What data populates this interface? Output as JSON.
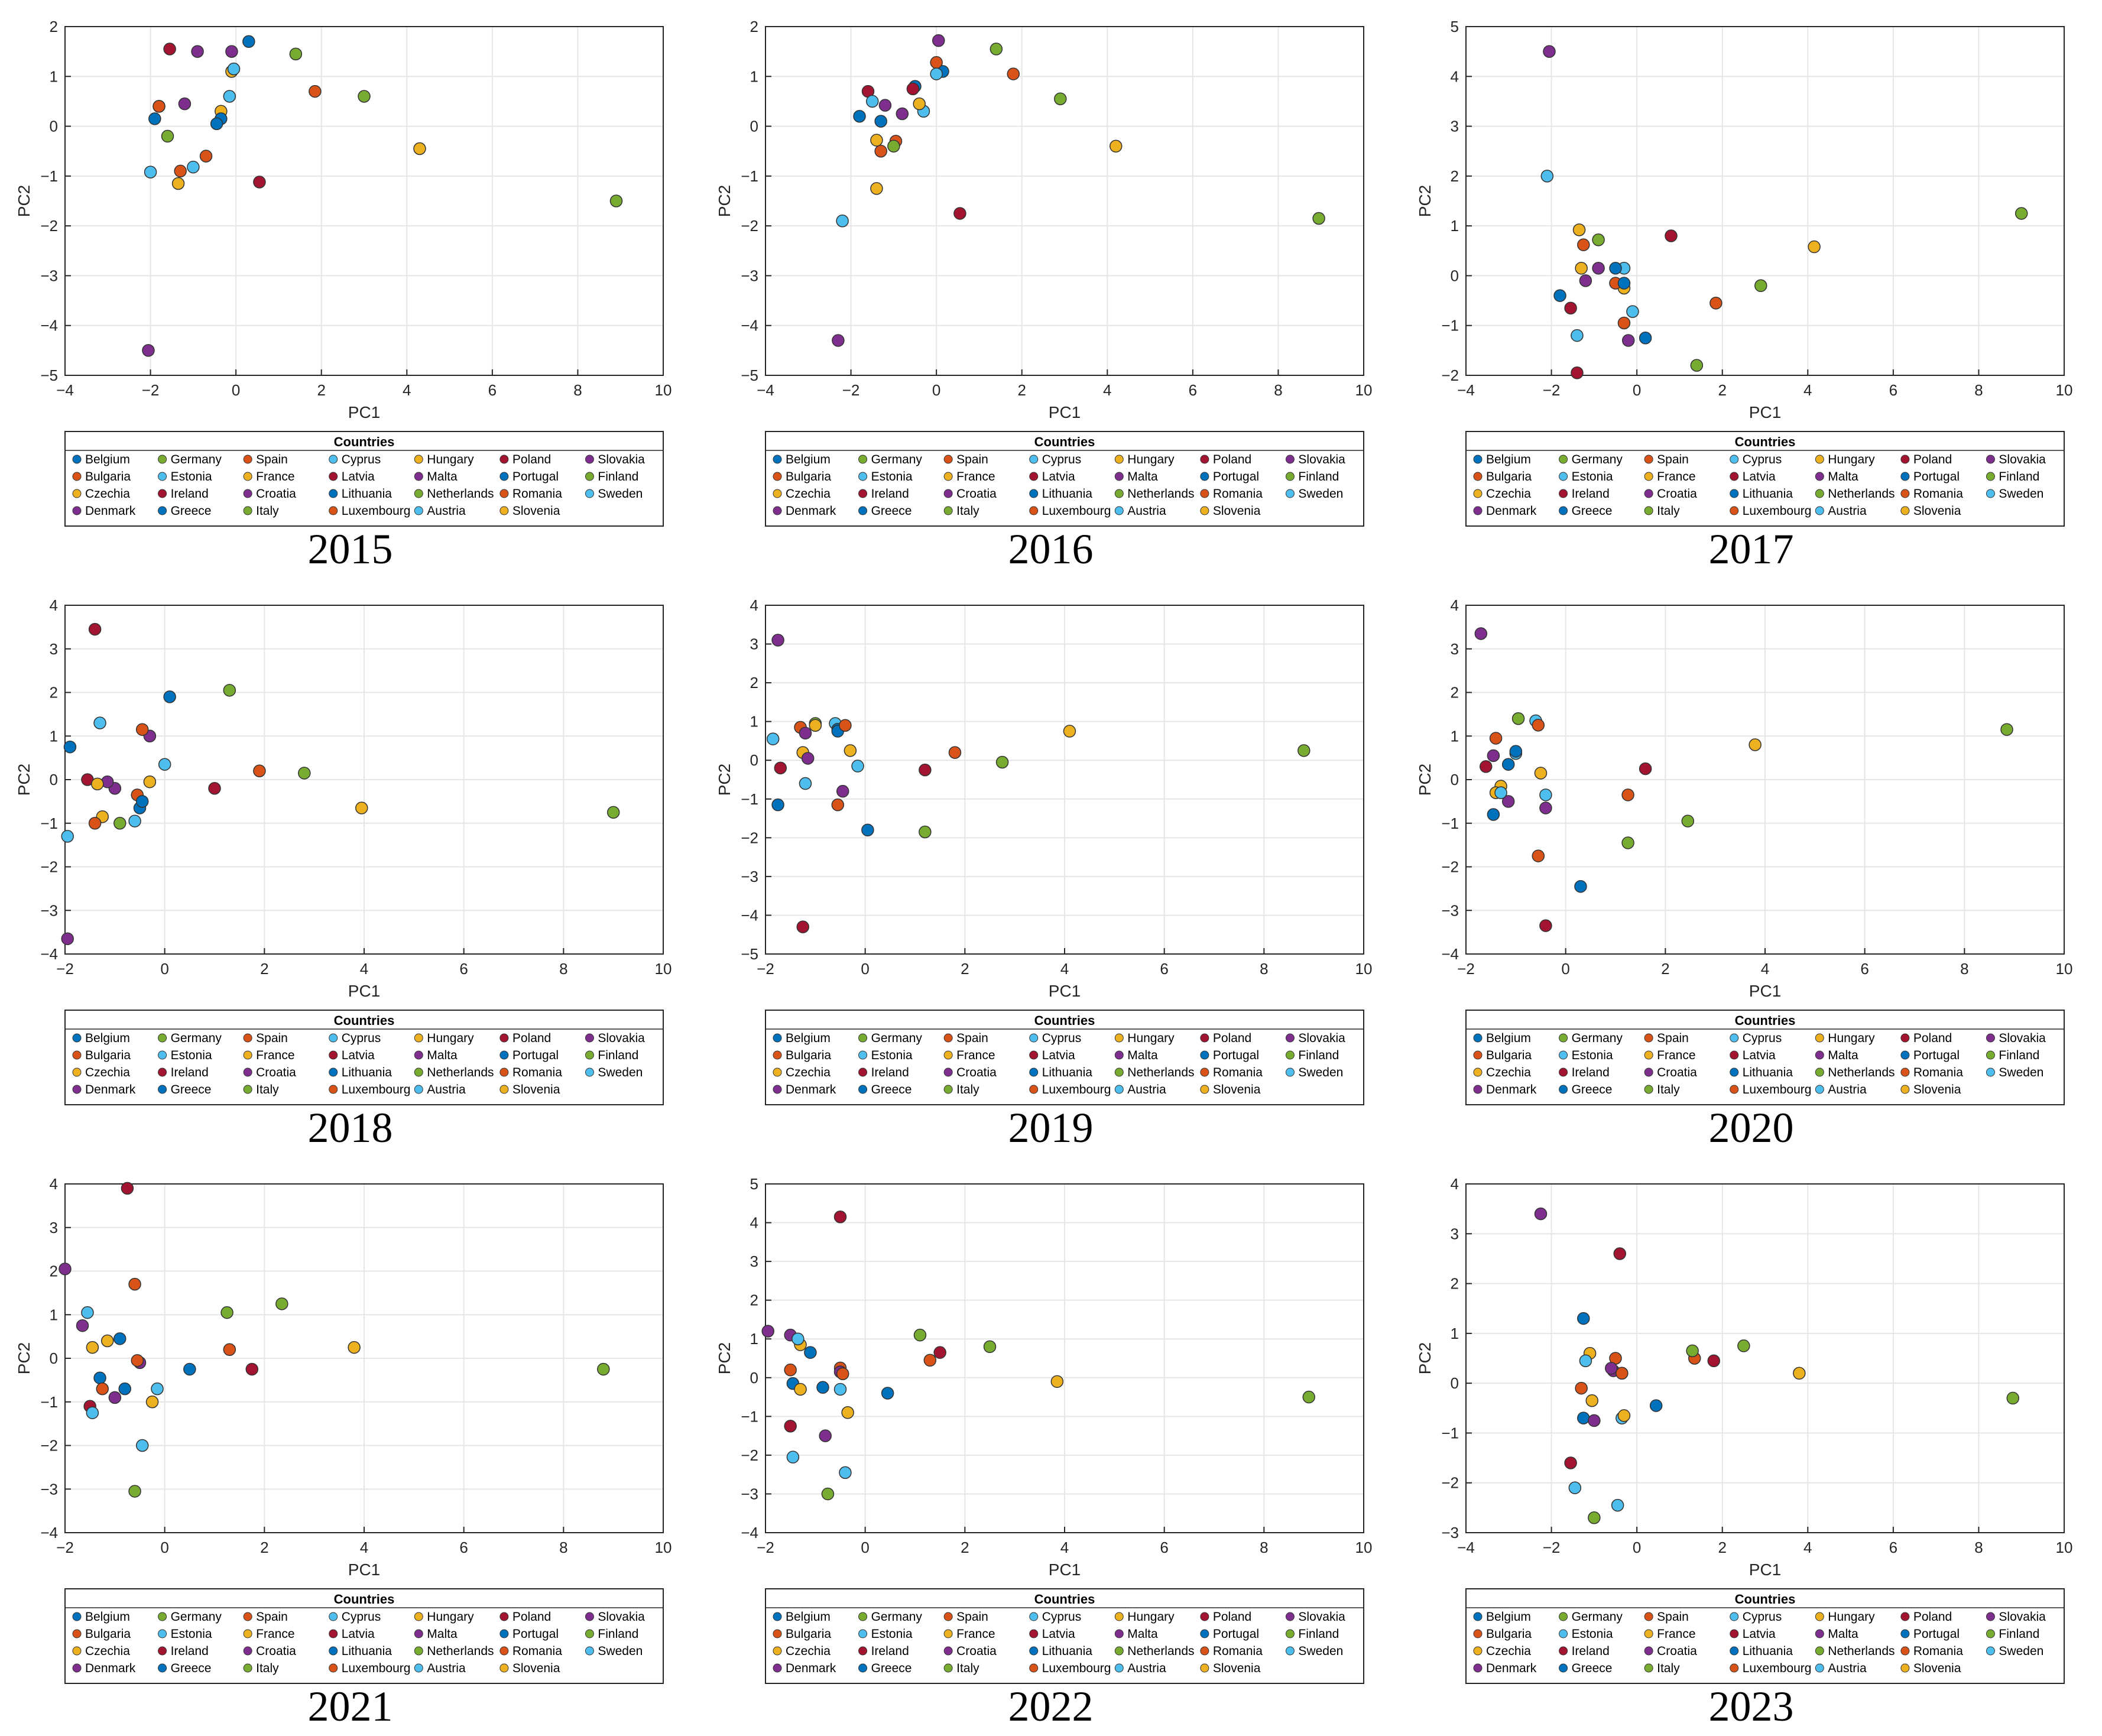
{
  "legend": {
    "title": "Countries",
    "countries": [
      {
        "name": "Belgium",
        "color": "#0072BD"
      },
      {
        "name": "Bulgaria",
        "color": "#D95319"
      },
      {
        "name": "Czechia",
        "color": "#EDB120"
      },
      {
        "name": "Denmark",
        "color": "#7E2F8E"
      },
      {
        "name": "Germany",
        "color": "#77AC30"
      },
      {
        "name": "Estonia",
        "color": "#4DBEEE"
      },
      {
        "name": "Ireland",
        "color": "#A2142F"
      },
      {
        "name": "Greece",
        "color": "#0072BD"
      },
      {
        "name": "Spain",
        "color": "#D95319"
      },
      {
        "name": "France",
        "color": "#EDB120"
      },
      {
        "name": "Croatia",
        "color": "#7E2F8E"
      },
      {
        "name": "Italy",
        "color": "#77AC30"
      },
      {
        "name": "Cyprus",
        "color": "#4DBEEE"
      },
      {
        "name": "Latvia",
        "color": "#A2142F"
      },
      {
        "name": "Lithuania",
        "color": "#0072BD"
      },
      {
        "name": "Luxembourg",
        "color": "#D95319"
      },
      {
        "name": "Hungary",
        "color": "#EDB120"
      },
      {
        "name": "Malta",
        "color": "#7E2F8E"
      },
      {
        "name": "Netherlands",
        "color": "#77AC30"
      },
      {
        "name": "Austria",
        "color": "#4DBEEE"
      },
      {
        "name": "Poland",
        "color": "#A2142F"
      },
      {
        "name": "Portugal",
        "color": "#0072BD"
      },
      {
        "name": "Romania",
        "color": "#D95319"
      },
      {
        "name": "Slovenia",
        "color": "#EDB120"
      },
      {
        "name": "Slovakia",
        "color": "#7E2F8E"
      },
      {
        "name": "Finland",
        "color": "#77AC30"
      },
      {
        "name": "Sweden",
        "color": "#4DBEEE"
      }
    ]
  },
  "chart_data": [
    {
      "type": "scatter",
      "title": "2015",
      "xlabel": "PC1",
      "ylabel": "PC2",
      "xlim": [
        -4,
        10
      ],
      "ylim": [
        -5,
        2
      ],
      "xticks": [
        -4,
        -2,
        0,
        2,
        4,
        6,
        8,
        10
      ],
      "yticks": [
        -5,
        -4,
        -3,
        -2,
        -1,
        0,
        1,
        2
      ],
      "grid": true,
      "points": [
        [
          -1.9,
          0.15
        ],
        [
          -1.3,
          -0.9
        ],
        [
          -1.35,
          -1.15
        ],
        [
          -0.9,
          1.5
        ],
        [
          3.0,
          0.6
        ],
        [
          -1.0,
          -0.82
        ],
        [
          0.55,
          -1.12
        ],
        [
          0.3,
          1.7
        ],
        [
          -0.7,
          -0.6
        ],
        [
          -0.35,
          0.3
        ],
        [
          -1.2,
          0.45
        ],
        [
          1.4,
          1.45
        ],
        [
          -0.15,
          0.6
        ],
        [
          -1.55,
          1.55
        ],
        [
          -0.35,
          0.15
        ],
        [
          1.85,
          0.7
        ],
        [
          4.3,
          -0.45
        ],
        [
          -2.05,
          -4.5
        ],
        [
          -1.6,
          -0.2
        ],
        [
          -2.0,
          -0.92
        ],
        [
          -1.8,
          0.4
        ],
        [
          -0.45,
          0.05
        ],
        [
          -1.8,
          0.4
        ],
        [
          -0.1,
          1.1
        ],
        [
          -0.1,
          1.5
        ],
        [
          8.9,
          -1.5
        ],
        [
          -0.05,
          1.15
        ]
      ]
    },
    {
      "type": "scatter",
      "title": "2016",
      "xlabel": "PC1",
      "ylabel": "PC2",
      "xlim": [
        -4,
        10
      ],
      "ylim": [
        -5,
        2
      ],
      "xticks": [
        -4,
        -2,
        0,
        2,
        4,
        6,
        8,
        10
      ],
      "yticks": [
        -5,
        -4,
        -3,
        -2,
        -1,
        0,
        1,
        2
      ],
      "grid": true,
      "points": [
        [
          -1.8,
          0.2
        ],
        [
          -1.3,
          -0.5
        ],
        [
          -1.4,
          -1.25
        ],
        [
          -1.2,
          0.42
        ],
        [
          1.4,
          1.55
        ],
        [
          -2.2,
          -1.9
        ],
        [
          -1.6,
          0.7
        ],
        [
          -0.5,
          0.8
        ],
        [
          -0.95,
          -0.3
        ],
        [
          -1.4,
          -0.28
        ],
        [
          -0.8,
          0.25
        ],
        [
          -1.0,
          -0.4
        ],
        [
          -0.3,
          0.3
        ],
        [
          0.55,
          -1.75
        ],
        [
          0.15,
          1.1
        ],
        [
          1.8,
          1.05
        ],
        [
          -0.4,
          0.45
        ],
        [
          -2.3,
          -4.3
        ],
        [
          2.9,
          0.55
        ],
        [
          -1.5,
          0.5
        ],
        [
          -0.55,
          0.75
        ],
        [
          -1.3,
          0.1
        ],
        [
          0.0,
          1.28
        ],
        [
          4.2,
          -0.4
        ],
        [
          0.05,
          1.72
        ],
        [
          8.95,
          -1.85
        ],
        [
          0.0,
          1.05
        ]
      ]
    },
    {
      "type": "scatter",
      "title": "2017",
      "xlabel": "PC1",
      "ylabel": "PC2",
      "xlim": [
        -4,
        10
      ],
      "ylim": [
        -2,
        5
      ],
      "xticks": [
        -4,
        -2,
        0,
        2,
        4,
        6,
        8,
        10
      ],
      "yticks": [
        -2,
        -1,
        0,
        1,
        2,
        3,
        4,
        5
      ],
      "grid": true,
      "points": [
        [
          -1.8,
          -0.4
        ],
        [
          -0.3,
          -0.95
        ],
        [
          -0.3,
          -0.25
        ],
        [
          -1.2,
          -0.1
        ],
        [
          2.9,
          -0.2
        ],
        [
          -1.4,
          -1.2
        ],
        [
          -1.55,
          -0.65
        ],
        [
          0.2,
          -1.25
        ],
        [
          -0.5,
          -0.15
        ],
        [
          -1.3,
          0.15
        ],
        [
          -0.9,
          0.15
        ],
        [
          1.4,
          -1.8
        ],
        [
          -0.3,
          0.15
        ],
        [
          -1.4,
          -1.95
        ],
        [
          -0.5,
          0.15
        ],
        [
          1.85,
          -0.55
        ],
        [
          -1.35,
          0.92
        ],
        [
          -0.2,
          -1.3
        ],
        [
          -0.9,
          0.72
        ],
        [
          -0.1,
          -0.72
        ],
        [
          0.8,
          0.8
        ],
        [
          -0.3,
          -0.15
        ],
        [
          -1.25,
          0.62
        ],
        [
          4.15,
          0.58
        ],
        [
          -2.05,
          4.5
        ],
        [
          9.0,
          1.25
        ],
        [
          -2.1,
          2.0
        ]
      ]
    },
    {
      "type": "scatter",
      "title": "2018",
      "xlabel": "PC1",
      "ylabel": "PC2",
      "xlim": [
        -2,
        10
      ],
      "ylim": [
        -4,
        4
      ],
      "xticks": [
        -2,
        0,
        2,
        4,
        6,
        8,
        10
      ],
      "yticks": [
        -4,
        -3,
        -2,
        -1,
        0,
        1,
        2,
        3,
        4
      ],
      "grid": true,
      "points": [
        [
          -1.9,
          0.75
        ],
        [
          -0.55,
          -0.35
        ],
        [
          -1.25,
          -0.85
        ],
        [
          -1.0,
          -0.2
        ],
        [
          2.8,
          0.15
        ],
        [
          -0.6,
          -0.95
        ],
        [
          -1.55,
          0.0
        ],
        [
          0.1,
          1.9
        ],
        [
          -1.4,
          -1.0
        ],
        [
          -0.3,
          -0.05
        ],
        [
          -1.15,
          -0.05
        ],
        [
          -0.9,
          -1.0
        ],
        [
          0.0,
          0.35
        ],
        [
          1.0,
          -0.2
        ],
        [
          -0.5,
          -0.65
        ],
        [
          1.9,
          0.2
        ],
        [
          3.95,
          -0.65
        ],
        [
          -0.3,
          1.0
        ],
        [
          1.3,
          2.05
        ],
        [
          -1.95,
          -1.3
        ],
        [
          -1.4,
          3.45
        ],
        [
          -0.45,
          -0.5
        ],
        [
          -0.45,
          1.15
        ],
        [
          -1.35,
          -0.1
        ],
        [
          -1.95,
          -3.65
        ],
        [
          9.0,
          -0.75
        ],
        [
          -1.3,
          1.3
        ]
      ]
    },
    {
      "type": "scatter",
      "title": "2019",
      "xlabel": "PC1",
      "ylabel": "PC2",
      "xlim": [
        -2,
        10
      ],
      "ylim": [
        -5,
        4
      ],
      "xticks": [
        -2,
        0,
        2,
        4,
        6,
        8,
        10
      ],
      "yticks": [
        -5,
        -4,
        -3,
        -2,
        -1,
        0,
        1,
        2,
        3,
        4
      ],
      "grid": true,
      "points": [
        [
          -1.75,
          -1.15
        ],
        [
          -1.3,
          0.85
        ],
        [
          -1.25,
          0.2
        ],
        [
          -1.2,
          0.7
        ],
        [
          2.75,
          -0.05
        ],
        [
          -1.85,
          0.55
        ],
        [
          -1.7,
          -0.2
        ],
        [
          0.05,
          -1.8
        ],
        [
          -0.55,
          -1.15
        ],
        [
          -0.3,
          0.25
        ],
        [
          -1.15,
          0.05
        ],
        [
          1.2,
          -1.85
        ],
        [
          -0.6,
          0.95
        ],
        [
          1.2,
          -0.25
        ],
        [
          -0.55,
          0.8
        ],
        [
          1.8,
          0.2
        ],
        [
          4.1,
          0.75
        ],
        [
          -0.45,
          -0.8
        ],
        [
          -1.0,
          0.95
        ],
        [
          -0.15,
          -0.15
        ],
        [
          -1.25,
          -4.3
        ],
        [
          -0.55,
          0.75
        ],
        [
          -0.4,
          0.9
        ],
        [
          -1.0,
          0.9
        ],
        [
          -1.75,
          3.1
        ],
        [
          8.8,
          0.25
        ],
        [
          -1.2,
          -0.6
        ]
      ]
    },
    {
      "type": "scatter",
      "title": "2020",
      "xlabel": "PC1",
      "ylabel": "PC2",
      "xlim": [
        -2,
        10
      ],
      "ylim": [
        -4,
        4
      ],
      "xticks": [
        -2,
        0,
        2,
        4,
        6,
        8,
        10
      ],
      "yticks": [
        -4,
        -3,
        -2,
        -1,
        0,
        1,
        2,
        3,
        4
      ],
      "grid": true,
      "points": [
        [
          -1.15,
          0.35
        ],
        [
          -0.55,
          -1.75
        ],
        [
          -1.3,
          -0.15
        ],
        [
          -1.45,
          0.55
        ],
        [
          2.45,
          -0.95
        ],
        [
          -1.0,
          0.6
        ],
        [
          -1.6,
          0.3
        ],
        [
          0.3,
          -2.45
        ],
        [
          -1.4,
          0.95
        ],
        [
          -0.5,
          0.15
        ],
        [
          -1.15,
          -0.5
        ],
        [
          1.25,
          -1.45
        ],
        [
          -0.6,
          1.35
        ],
        [
          1.6,
          0.25
        ],
        [
          -1.45,
          -0.8
        ],
        [
          1.25,
          -0.35
        ],
        [
          3.8,
          0.8
        ],
        [
          -0.4,
          -0.65
        ],
        [
          -0.95,
          1.4
        ],
        [
          -0.4,
          -0.35
        ],
        [
          -0.4,
          -3.35
        ],
        [
          -1.0,
          0.65
        ],
        [
          -0.55,
          1.25
        ],
        [
          -1.4,
          -0.3
        ],
        [
          -1.7,
          3.35
        ],
        [
          8.85,
          1.15
        ],
        [
          -1.3,
          -0.3
        ]
      ]
    },
    {
      "type": "scatter",
      "title": "2021",
      "xlabel": "PC1",
      "ylabel": "PC2",
      "xlim": [
        -2,
        10
      ],
      "ylim": [
        -4,
        4
      ],
      "xticks": [
        -2,
        0,
        2,
        4,
        6,
        8,
        10
      ],
      "yticks": [
        -4,
        -3,
        -2,
        -1,
        0,
        1,
        2,
        3,
        4
      ],
      "grid": true,
      "points": [
        [
          -1.3,
          -0.45
        ],
        [
          -1.25,
          -0.7
        ],
        [
          -0.25,
          -1.0
        ],
        [
          -1.0,
          -0.9
        ],
        [
          2.35,
          1.25
        ],
        [
          -1.55,
          1.05
        ],
        [
          -1.5,
          -1.1
        ],
        [
          -0.8,
          -0.7
        ],
        [
          -0.6,
          1.7
        ],
        [
          -1.45,
          0.25
        ],
        [
          -1.65,
          0.75
        ],
        [
          1.25,
          1.05
        ],
        [
          -0.15,
          -0.7
        ],
        [
          1.75,
          -0.25
        ],
        [
          -0.9,
          0.45
        ],
        [
          1.3,
          0.2
        ],
        [
          3.8,
          0.25
        ],
        [
          -0.5,
          -0.1
        ],
        [
          -0.6,
          -3.05
        ],
        [
          -0.45,
          -2.0
        ],
        [
          -0.75,
          3.9
        ],
        [
          0.5,
          -0.25
        ],
        [
          -0.55,
          -0.05
        ],
        [
          -1.15,
          0.4
        ],
        [
          -2.0,
          2.05
        ],
        [
          8.8,
          -0.25
        ],
        [
          -1.45,
          -1.25
        ]
      ]
    },
    {
      "type": "scatter",
      "title": "2022",
      "xlabel": "PC1",
      "ylabel": "PC2",
      "xlim": [
        -2,
        10
      ],
      "ylim": [
        -4,
        5
      ],
      "xticks": [
        -2,
        0,
        2,
        4,
        6,
        8,
        10
      ],
      "yticks": [
        -4,
        -3,
        -2,
        -1,
        0,
        1,
        2,
        3,
        4,
        5
      ],
      "grid": true,
      "points": [
        [
          -1.45,
          -0.15
        ],
        [
          -1.5,
          0.2
        ],
        [
          -1.3,
          0.85
        ],
        [
          -1.5,
          1.1
        ],
        [
          2.5,
          0.8
        ],
        [
          -1.35,
          1.0
        ],
        [
          -1.5,
          -1.25
        ],
        [
          -0.85,
          -0.25
        ],
        [
          -0.5,
          0.25
        ],
        [
          -1.3,
          -0.3
        ],
        [
          -0.8,
          -1.5
        ],
        [
          -0.75,
          -3.0
        ],
        [
          -0.5,
          -0.3
        ],
        [
          1.5,
          0.65
        ],
        [
          -1.1,
          0.65
        ],
        [
          1.3,
          0.45
        ],
        [
          3.85,
          -0.1
        ],
        [
          -0.5,
          0.15
        ],
        [
          1.1,
          1.1
        ],
        [
          -0.4,
          -2.45
        ],
        [
          -0.5,
          4.15
        ],
        [
          0.45,
          -0.4
        ],
        [
          -0.45,
          0.1
        ],
        [
          -0.35,
          -0.9
        ],
        [
          -1.95,
          1.2
        ],
        [
          8.9,
          -0.5
        ],
        [
          -1.45,
          -2.05
        ]
      ]
    },
    {
      "type": "scatter",
      "title": "2023",
      "xlabel": "PC1",
      "ylabel": "PC2",
      "xlim": [
        -4,
        10
      ],
      "ylim": [
        -3,
        4
      ],
      "xticks": [
        -4,
        -2,
        0,
        2,
        4,
        6,
        8,
        10
      ],
      "yticks": [
        -3,
        -2,
        -1,
        0,
        1,
        2,
        3,
        4
      ],
      "grid": true,
      "points": [
        [
          -1.25,
          1.3
        ],
        [
          -0.5,
          0.5
        ],
        [
          -1.1,
          0.6
        ],
        [
          -0.55,
          0.25
        ],
        [
          2.5,
          0.75
        ],
        [
          -1.2,
          0.45
        ],
        [
          -1.55,
          -1.6
        ],
        [
          -1.25,
          -0.7
        ],
        [
          -1.3,
          -0.1
        ],
        [
          -1.05,
          -0.35
        ],
        [
          -1.0,
          -0.75
        ],
        [
          -1.0,
          -2.7
        ],
        [
          -0.35,
          -0.7
        ],
        [
          1.8,
          0.45
        ],
        [
          -0.35,
          0.2
        ],
        [
          1.35,
          0.5
        ],
        [
          3.8,
          0.2
        ],
        [
          -0.6,
          0.3
        ],
        [
          1.3,
          0.65
        ],
        [
          -0.45,
          -2.45
        ],
        [
          -0.4,
          2.6
        ],
        [
          0.45,
          -0.45
        ],
        [
          -0.35,
          0.2
        ],
        [
          -0.3,
          -0.65
        ],
        [
          -2.25,
          3.4
        ],
        [
          8.8,
          -0.3
        ],
        [
          -1.45,
          -2.1
        ]
      ]
    }
  ]
}
